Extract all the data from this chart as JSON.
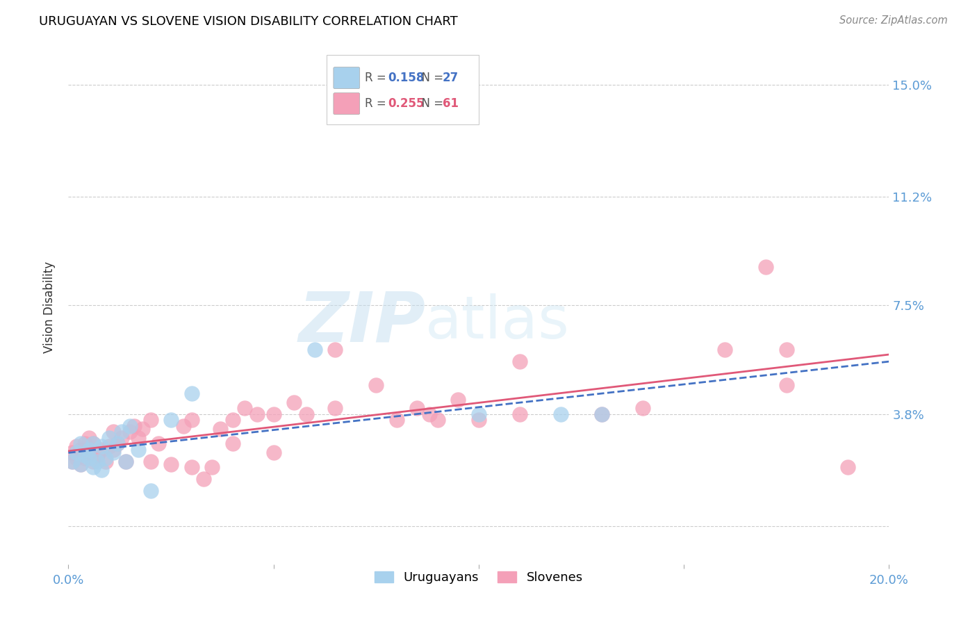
{
  "title": "URUGUAYAN VS SLOVENE VISION DISABILITY CORRELATION CHART",
  "source": "Source: ZipAtlas.com",
  "ylabel": "Vision Disability",
  "xlim": [
    0.0,
    0.2
  ],
  "ylim": [
    -0.013,
    0.162
  ],
  "yticks": [
    0.0,
    0.038,
    0.075,
    0.112,
    0.15
  ],
  "ytick_labels": [
    "",
    "3.8%",
    "7.5%",
    "11.2%",
    "15.0%"
  ],
  "xtick_vals": [
    0.0,
    0.05,
    0.1,
    0.15,
    0.2
  ],
  "xtick_labels": [
    "0.0%",
    "",
    "",
    "",
    "20.0%"
  ],
  "uruguayan_scatter_color": "#a8d1ed",
  "slovene_scatter_color": "#f4a0b8",
  "uruguayan_line_color": "#4472c4",
  "slovene_line_color": "#e05878",
  "R_uruguayan": "0.158",
  "N_uruguayan": "27",
  "R_slovene": "0.255",
  "N_slovene": "61",
  "legend_label_1": "Uruguayans",
  "legend_label_2": "Slovenes",
  "watermark_zip": "ZIP",
  "watermark_atlas": "atlas",
  "uru_x": [
    0.001,
    0.002,
    0.003,
    0.003,
    0.004,
    0.005,
    0.005,
    0.006,
    0.006,
    0.007,
    0.008,
    0.008,
    0.009,
    0.01,
    0.011,
    0.012,
    0.013,
    0.014,
    0.015,
    0.017,
    0.02,
    0.025,
    0.03,
    0.06,
    0.1,
    0.12,
    0.13
  ],
  "uru_y": [
    0.022,
    0.025,
    0.021,
    0.028,
    0.024,
    0.026,
    0.023,
    0.02,
    0.028,
    0.022,
    0.019,
    0.027,
    0.023,
    0.03,
    0.025,
    0.028,
    0.032,
    0.022,
    0.034,
    0.026,
    0.012,
    0.036,
    0.045,
    0.06,
    0.038,
    0.038,
    0.038
  ],
  "slo_x": [
    0.001,
    0.001,
    0.002,
    0.002,
    0.003,
    0.003,
    0.004,
    0.004,
    0.005,
    0.005,
    0.006,
    0.006,
    0.007,
    0.008,
    0.009,
    0.01,
    0.011,
    0.011,
    0.012,
    0.013,
    0.014,
    0.015,
    0.016,
    0.017,
    0.018,
    0.02,
    0.02,
    0.022,
    0.025,
    0.028,
    0.03,
    0.03,
    0.033,
    0.035,
    0.037,
    0.04,
    0.04,
    0.043,
    0.046,
    0.05,
    0.05,
    0.055,
    0.058,
    0.065,
    0.065,
    0.075,
    0.08,
    0.085,
    0.088,
    0.09,
    0.095,
    0.1,
    0.11,
    0.11,
    0.13,
    0.14,
    0.16,
    0.17,
    0.175,
    0.175,
    0.19
  ],
  "slo_y": [
    0.022,
    0.025,
    0.023,
    0.027,
    0.021,
    0.026,
    0.023,
    0.028,
    0.025,
    0.03,
    0.022,
    0.028,
    0.024,
    0.026,
    0.022,
    0.027,
    0.026,
    0.032,
    0.028,
    0.03,
    0.022,
    0.032,
    0.034,
    0.03,
    0.033,
    0.022,
    0.036,
    0.028,
    0.021,
    0.034,
    0.02,
    0.036,
    0.016,
    0.02,
    0.033,
    0.028,
    0.036,
    0.04,
    0.038,
    0.025,
    0.038,
    0.042,
    0.038,
    0.04,
    0.06,
    0.048,
    0.036,
    0.04,
    0.038,
    0.036,
    0.043,
    0.036,
    0.038,
    0.056,
    0.038,
    0.04,
    0.06,
    0.088,
    0.048,
    0.06,
    0.02
  ]
}
